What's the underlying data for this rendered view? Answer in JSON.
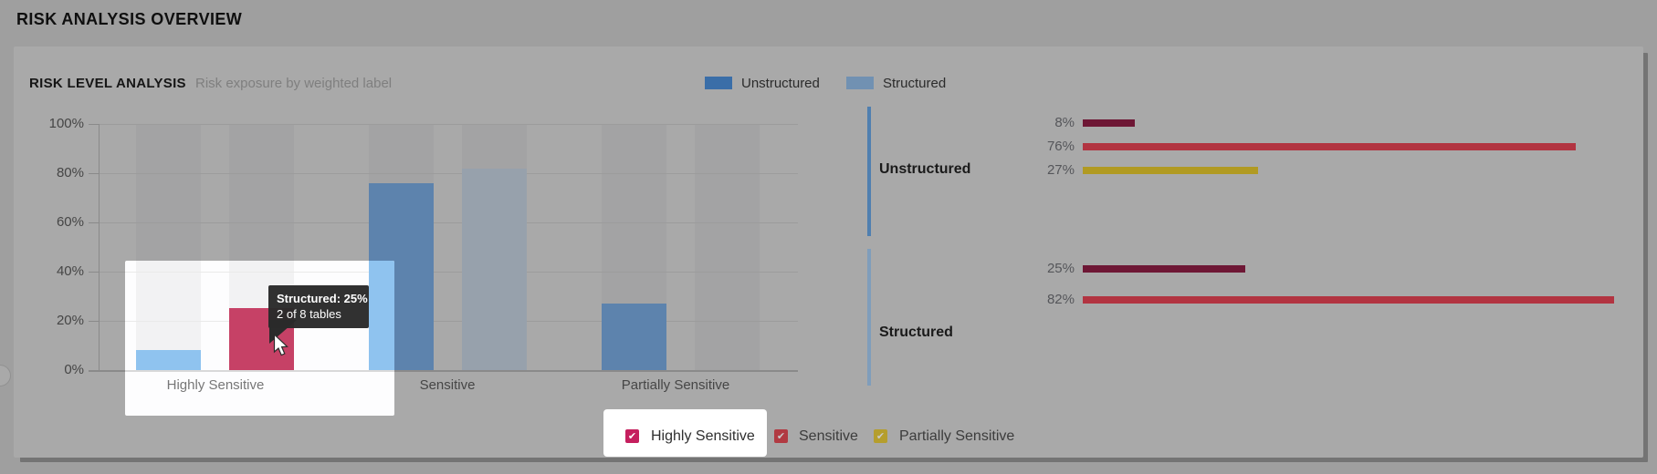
{
  "page": {
    "title": "RISK ANALYSIS OVERVIEW"
  },
  "panel": {
    "title": "RISK LEVEL ANALYSIS",
    "subtitle": "Risk exposure by weighted label",
    "series_legend": [
      {
        "label": "Unstructured",
        "swatch_color": "#3a6ea8"
      },
      {
        "label": "Structured",
        "swatch_color": "#7191b2"
      }
    ]
  },
  "chart_data": {
    "type": "bar",
    "title": "RISK LEVEL ANALYSIS",
    "subtitle": "Risk exposure by weighted label",
    "categories": [
      "Highly Sensitive",
      "Sensitive",
      "Partially Sensitive"
    ],
    "series": [
      {
        "name": "Unstructured",
        "values": [
          8,
          76,
          27
        ]
      },
      {
        "name": "Structured",
        "values": [
          25,
          82,
          null
        ]
      }
    ],
    "y_ticks": [
      "100%",
      "80%",
      "60%",
      "40%",
      "20%",
      "0%"
    ],
    "ylim": [
      0,
      100
    ],
    "grid": true,
    "legend_position": "top-right",
    "hover": {
      "series": "Structured",
      "category": "Highly Sensitive",
      "value": 25,
      "tooltip_title": "Structured: 25%",
      "tooltip_detail": "2 of 8 tables"
    },
    "breakdown_panel": {
      "groups": [
        {
          "label": "Unstructured",
          "rows": [
            {
              "risk": "Highly Sensitive",
              "pct": 8
            },
            {
              "risk": "Sensitive",
              "pct": 76
            },
            {
              "risk": "Partially Sensitive",
              "pct": 27
            }
          ]
        },
        {
          "label": "Structured",
          "rows": [
            {
              "risk": "Highly Sensitive",
              "pct": 25
            },
            {
              "risk": "Sensitive",
              "pct": 82
            }
          ]
        }
      ]
    }
  },
  "risk_legend": {
    "items": [
      {
        "label": "Highly Sensitive",
        "checked": true,
        "highlighted": true,
        "swatch_color": "#c51f5e",
        "check_color": "#ffffff",
        "text_color": "#2f2f2f"
      },
      {
        "label": "Sensitive",
        "checked": true,
        "highlighted": false,
        "swatch_color": "#b13a42",
        "check_color": "#c9c9c9",
        "text_color": "#3c3c3c"
      },
      {
        "label": "Partially Sensitive",
        "checked": true,
        "highlighted": false,
        "swatch_color": "#b59e2d",
        "check_color": "#c9c9c9",
        "text_color": "#3c3c3c"
      }
    ]
  },
  "colors": {
    "risk_dim": {
      "Highly Sensitive": "#6e1735",
      "Sensitive": "#b23441",
      "Partially Sensitive": "#b19a22"
    },
    "series_dim": [
      "#5d83ad",
      "#97a1ac"
    ],
    "series_bright": [
      "#8fc3ef",
      "#dfeaf4"
    ],
    "hover_bar_bright": "#c64166",
    "hover_bar_dim": "#8c3050",
    "accent_unstructured": "#4f7fb0",
    "accent_structured": "#7f9dbb"
  }
}
